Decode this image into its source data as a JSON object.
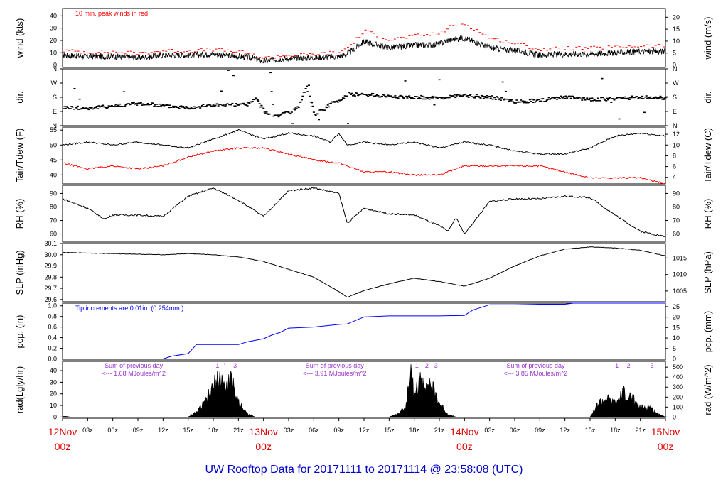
{
  "chart_data": {
    "type": "line",
    "title": "UW Rooftop Data for 20171111  to  20171114 @ 23:58:08  (UTC)",
    "x_labels": [
      "12Nov",
      "03z",
      "06z",
      "09z",
      "12z",
      "15z",
      "18z",
      "21z",
      "13Nov",
      "03z",
      "06z",
      "09z",
      "12z",
      "15z",
      "18z",
      "21z",
      "14Nov",
      "03z",
      "06z",
      "09z",
      "12z",
      "15z",
      "18z",
      "21z",
      "15Nov"
    ],
    "x_hours": [
      0,
      3,
      6,
      9,
      12,
      15,
      18,
      21,
      24,
      27,
      30,
      33,
      36,
      39,
      42,
      45,
      48,
      51,
      54,
      57,
      60,
      63,
      66,
      69,
      72
    ],
    "date_labels": [
      {
        "day": "12Nov",
        "hour": "00z",
        "at": 0
      },
      {
        "day": "13Nov",
        "hour": "00z",
        "at": 24
      },
      {
        "day": "14Nov",
        "hour": "00z",
        "at": 48
      },
      {
        "day": "15Nov",
        "hour": "00z",
        "at": 72
      }
    ],
    "panels": [
      {
        "id": "wind",
        "ylabel_left": "wind (kts)",
        "ylabel_right": "wind (m/s)",
        "ylim": [
          -2,
          46
        ],
        "ticks_left": [
          "0",
          "10",
          "20",
          "30",
          "40"
        ],
        "ticks_left_v": [
          0,
          10,
          20,
          30,
          40
        ],
        "ticks_right": [
          "0",
          "5",
          "10",
          "15",
          "20"
        ],
        "ticks_right_v": [
          0,
          9.72,
          19.44,
          29.16,
          38.88
        ],
        "annotation": "10 min. peak winds in red",
        "series": [
          {
            "name": "wind",
            "color": "#000000",
            "x": [
              0,
              3,
              6,
              9,
              12,
              15,
              18,
              21,
              22.5,
              24,
              26,
              30,
              33,
              34,
              36,
              39,
              42,
              45,
              46,
              48,
              51,
              54,
              57,
              60,
              63,
              66,
              69,
              72
            ],
            "y": [
              8,
              7,
              7,
              6,
              8,
              8,
              9,
              7,
              6,
              3,
              5,
              6,
              7,
              9,
              19,
              14,
              16,
              17,
              20,
              22,
              14,
              12,
              8,
              9,
              9,
              10,
              11,
              11
            ]
          },
          {
            "name": "peak",
            "color": "#ff0000",
            "x": [
              0,
              3,
              6,
              9,
              12,
              15,
              18,
              21,
              22.5,
              24,
              26,
              30,
              33,
              34,
              36,
              39,
              42,
              45,
              46,
              48,
              51,
              54,
              57,
              60,
              63,
              66,
              69,
              72
            ],
            "y": [
              11,
              10,
              10,
              9,
              11,
              11,
              12,
              10,
              8,
              5,
              7,
              8,
              10,
              14,
              27,
              20,
              23,
              25,
              30,
              33,
              21,
              17,
              12,
              13,
              13,
              14,
              15,
              15
            ]
          }
        ]
      },
      {
        "id": "dir",
        "ylabel_left": "dir.",
        "ylabel_right": "dir.",
        "ylim": [
          0,
          360
        ],
        "ticks_left": [
          "N",
          "E",
          "S",
          "W",
          "N"
        ],
        "ticks_left_v": [
          0,
          90,
          180,
          270,
          360
        ],
        "ticks_right": [
          "N",
          "E",
          "S",
          "W",
          "N"
        ],
        "ticks_right_v": [
          0,
          90,
          180,
          270,
          360
        ],
        "series": [
          {
            "name": "direction",
            "color": "#000000",
            "style": "dots",
            "x": [
              0,
              3,
              6,
              9,
              12,
              15,
              18,
              21,
              22,
              23,
              24,
              25,
              27,
              28,
              29,
              30,
              31,
              32,
              33,
              34,
              36,
              39,
              42,
              45,
              48,
              51,
              54,
              57,
              60,
              63,
              66,
              69,
              72
            ],
            "y": [
              115,
              110,
              125,
              140,
              125,
              115,
              130,
              130,
              135,
              170,
              90,
              60,
              80,
              110,
              250,
              70,
              100,
              140,
              160,
              200,
              195,
              185,
              180,
              175,
              190,
              180,
              150,
              160,
              180,
              165,
              170,
              180,
              175
            ]
          }
        ]
      },
      {
        "id": "temp",
        "ylabel_left": "Tair/Tdew (F)",
        "ylabel_right": "Tair/Tdew (C)",
        "ylim": [
          37,
          56
        ],
        "ticks_left": [
          "40",
          "45",
          "50",
          "55"
        ],
        "ticks_left_v": [
          40,
          45,
          50,
          55
        ],
        "ticks_right": [
          "4",
          "6",
          "8",
          "10",
          "12"
        ],
        "ticks_right_v": [
          39.2,
          42.8,
          46.4,
          50,
          53.6
        ],
        "series": [
          {
            "name": "Tair",
            "color": "#000000",
            "x": [
              0,
              3,
              6,
              9,
              12,
              15,
              16,
              18,
              21,
              22,
              24,
              27,
              30,
              32,
              33,
              34,
              36,
              39,
              42,
              45,
              48,
              51,
              54,
              57,
              60,
              63,
              66,
              69,
              72
            ],
            "y": [
              50,
              51,
              50,
              51,
              50,
              49,
              50,
              52,
              55,
              54,
              52,
              54,
              53,
              51,
              54,
              50,
              51,
              50,
              51,
              49,
              51,
              50,
              48,
              47,
              47,
              49,
              53,
              54,
              53
            ]
          },
          {
            "name": "Tdew",
            "color": "#ff0000",
            "x": [
              0,
              3,
              6,
              9,
              12,
              15,
              18,
              21,
              24,
              27,
              30,
              33,
              36,
              39,
              42,
              45,
              48,
              51,
              54,
              57,
              60,
              63,
              66,
              69,
              72
            ],
            "y": [
              44,
              42,
              43,
              42,
              43,
              46,
              48,
              49,
              49,
              47,
              45,
              44,
              41,
              41,
              40,
              40,
              43,
              43,
              43,
              43,
              41,
              39,
              39,
              39,
              37
            ]
          }
        ]
      },
      {
        "id": "rh",
        "ylabel_left": "RH (%)",
        "ylabel_right": "RH (%)",
        "ylim": [
          54,
          96
        ],
        "ticks_left": [
          "60",
          "70",
          "80",
          "90"
        ],
        "ticks_left_v": [
          60,
          70,
          80,
          90
        ],
        "ticks_right": [
          "60",
          "70",
          "80",
          "90"
        ],
        "ticks_right_v": [
          60,
          70,
          80,
          90
        ],
        "series": [
          {
            "name": "RH",
            "color": "#000000",
            "x": [
              0,
              3,
              5,
              6,
              9,
              12,
              15,
              18,
              21,
              24,
              27,
              30,
              33,
              34,
              36,
              39,
              42,
              45,
              46,
              47,
              48,
              51,
              54,
              57,
              60,
              63,
              66,
              69,
              72
            ],
            "y": [
              86,
              79,
              71,
              74,
              74,
              73,
              88,
              94,
              85,
              73,
              92,
              94,
              90,
              68,
              79,
              75,
              74,
              66,
              62,
              72,
              60,
              84,
              86,
              86,
              88,
              87,
              74,
              62,
              58
            ]
          }
        ]
      },
      {
        "id": "slp",
        "ylabel_left": "SLP (inHg)",
        "ylabel_right": "SLP (hPa)",
        "ylim": [
          29.58,
          30.1
        ],
        "ticks_left": [
          "29.6",
          "29.7",
          "29.8",
          "29.9",
          "30.0",
          "30.1"
        ],
        "ticks_left_v": [
          29.6,
          29.7,
          29.8,
          29.9,
          30.0,
          30.1
        ],
        "ticks_right": [
          "1005",
          "1010",
          "1015"
        ],
        "ticks_right_v": [
          29.676,
          29.823,
          29.971
        ],
        "series": [
          {
            "name": "SLP",
            "color": "#000000",
            "x": [
              0,
              6,
              12,
              15,
              18,
              21,
              24,
              27,
              30,
              33,
              34,
              36,
              39,
              42,
              45,
              48,
              51,
              54,
              57,
              60,
              63,
              66,
              69,
              72
            ],
            "y": [
              30.02,
              30.01,
              30.0,
              30.01,
              30.0,
              29.98,
              29.94,
              29.87,
              29.8,
              29.67,
              29.62,
              29.68,
              29.74,
              29.79,
              29.76,
              29.72,
              29.79,
              29.9,
              29.99,
              30.05,
              30.07,
              30.06,
              30.04,
              29.99
            ]
          }
        ]
      },
      {
        "id": "pcp",
        "ylabel_left": "pcp. (in)",
        "ylabel_right": "pcp. (mm)",
        "ylim": [
          -0.02,
          1.05
        ],
        "ticks_left": [
          "0.0",
          "0.2",
          "0.4",
          "0.6",
          "0.8",
          "1.0"
        ],
        "ticks_left_v": [
          0,
          0.2,
          0.4,
          0.6,
          0.8,
          1.0
        ],
        "ticks_right": [
          "0",
          "5",
          "10",
          "15",
          "20",
          "25"
        ],
        "ticks_right_v": [
          0,
          0.197,
          0.394,
          0.591,
          0.787,
          0.984
        ],
        "annotation": "Tip increments are 0.01in. (0.254mm.)",
        "series": [
          {
            "name": "precip",
            "color": "#0000ff",
            "x": [
              0,
              12,
              13,
              15,
              16,
              21,
              22,
              24,
              25,
              26,
              27,
              30,
              33,
              34,
              36,
              39,
              42,
              45,
              48,
              49,
              51,
              54,
              57,
              60,
              61,
              72
            ],
            "y": [
              0,
              0,
              0.05,
              0.1,
              0.27,
              0.27,
              0.32,
              0.38,
              0.45,
              0.5,
              0.58,
              0.6,
              0.65,
              0.66,
              0.79,
              0.81,
              0.81,
              0.81,
              0.82,
              0.92,
              1.02,
              1.02,
              1.03,
              1.03,
              1.05,
              1.05
            ]
          }
        ]
      },
      {
        "id": "rad",
        "ylabel_left": "rad(Lgly/hr)",
        "ylabel_right": "rad (W/m^2)",
        "ylim": [
          -1,
          48
        ],
        "ticks_left": [
          "0",
          "10",
          "20",
          "30",
          "40"
        ],
        "ticks_left_v": [
          0,
          10,
          20,
          30,
          40
        ],
        "ticks_right": [
          "0",
          "100",
          "200",
          "300",
          "400",
          "500"
        ],
        "ticks_right_v": [
          0,
          8.6,
          17.2,
          25.8,
          34.4,
          43.0
        ],
        "annotations": [
          {
            "line1": "Sum of previous day",
            "line2": "<--- 1.68 MJoules/m^2",
            "hour": 8.5
          },
          {
            "line1": "Sum of previous day",
            "line2": "<--- 3.91 MJoules/m^2",
            "hour": 32.5
          },
          {
            "line1": "Sum of previous day",
            "line2": "<--- 3.85 MJoules/m^2",
            "hour": 56.5
          }
        ],
        "peak_labels": [
          {
            "text": "1",
            "hour": 18.5
          },
          {
            "text": "'",
            "hour": 19.3
          },
          {
            "text": "3",
            "hour": 20.6
          },
          {
            "text": "1",
            "hour": 42.3
          },
          {
            "text": "2",
            "hour": 43.5
          },
          {
            "text": "3",
            "hour": 44.6
          },
          {
            "text": "1",
            "hour": 66.2
          },
          {
            "text": "2",
            "hour": 67.6
          },
          {
            "text": "3",
            "hour": 70.4
          }
        ],
        "series": [
          {
            "name": "radiation",
            "color": "#000000",
            "style": "filled",
            "x": [
              0,
              1,
              15,
              16,
              17,
              18,
              19,
              19.5,
              20,
              21,
              22,
              23,
              39,
              40,
              41,
              41.5,
              42,
              43,
              44,
              45,
              46,
              47,
              63,
              64,
              65,
              66,
              67,
              68,
              69,
              70,
              71,
              72
            ],
            "y": [
              1,
              0,
              0,
              5,
              14,
              30,
              42,
              25,
              39,
              16,
              4,
              0,
              0,
              3,
              10,
              45,
              26,
              38,
              32,
              14,
              3,
              0,
              0,
              14,
              18,
              13,
              24,
              19,
              9,
              11,
              4,
              0
            ]
          }
        ]
      }
    ]
  }
}
